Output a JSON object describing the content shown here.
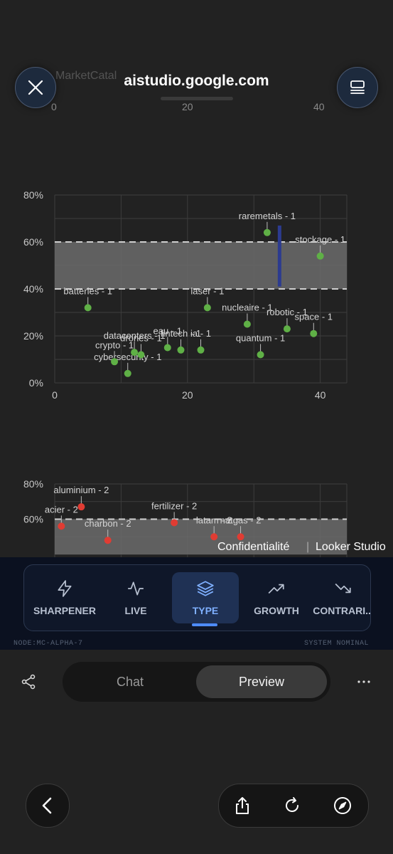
{
  "browser": {
    "url": "aistudio.google.com",
    "ghost_title": "MarketCatal"
  },
  "chart1": {
    "yticks": [
      "80%",
      "60%",
      "40%",
      "20%",
      "0%"
    ],
    "xticks": [
      "0",
      "20",
      "40"
    ],
    "points": [
      {
        "label": "batteries - 1",
        "x": 5,
        "y": 32
      },
      {
        "label": "cybersecurity - 1",
        "x": 11,
        "y": 4
      },
      {
        "label": "crypto - 1",
        "x": 9,
        "y": 9
      },
      {
        "label": "datacenters - 1",
        "x": 12,
        "y": 13
      },
      {
        "label": "drones - 1",
        "x": 13,
        "y": 12
      },
      {
        "label": "eau - 1",
        "x": 17,
        "y": 15
      },
      {
        "label": "fintech - 1",
        "x": 19,
        "y": 14
      },
      {
        "label": "ia - 1",
        "x": 22,
        "y": 14
      },
      {
        "label": "laser - 1",
        "x": 23,
        "y": 32
      },
      {
        "label": "nucleaire - 1",
        "x": 29,
        "y": 25
      },
      {
        "label": "quantum - 1",
        "x": 31,
        "y": 12
      },
      {
        "label": "raremetals - 1",
        "x": 32,
        "y": 64
      },
      {
        "label": "robotic - 1",
        "x": 35,
        "y": 23
      },
      {
        "label": "space - 1",
        "x": 39,
        "y": 21
      },
      {
        "label": "stockage - 1",
        "x": 40,
        "y": 54
      }
    ]
  },
  "chart2": {
    "yticks": [
      "80%",
      "60%"
    ],
    "points": [
      {
        "label": "aluminium - 2",
        "x": 4,
        "y": 67
      },
      {
        "label": "acier - 2",
        "x": 1,
        "y": 56
      },
      {
        "label": "fertilizer - 2",
        "x": 18,
        "y": 58
      },
      {
        "label": "latam - 2",
        "x": 24,
        "y": 50
      },
      {
        "label": "natgas - 2",
        "x": 28,
        "y": 50
      },
      {
        "label": "charbon - 2",
        "x": 8,
        "y": 48
      }
    ]
  },
  "footer": {
    "privacy": "Confidentialité",
    "brand": "Looker Studio"
  },
  "nav": {
    "items": [
      {
        "label": "SHARPENER",
        "icon": "bolt-icon"
      },
      {
        "label": "LIVE",
        "icon": "pulse-icon"
      },
      {
        "label": "TYPE",
        "icon": "layers-icon"
      },
      {
        "label": "GROWTH",
        "icon": "trending-up-icon"
      },
      {
        "label": "CONTRARI...",
        "icon": "trending-down-icon"
      }
    ],
    "active": "TYPE"
  },
  "status": {
    "node": "NODE:MC-ALPHA-7",
    "system": "SYSTEM NOMINAL"
  },
  "tabs": {
    "chat": "Chat",
    "preview": "Preview"
  },
  "colors": {
    "green": "#5fb046",
    "red": "#e03c33",
    "band": "#6b6b6b",
    "accent": "#4e8cff"
  }
}
